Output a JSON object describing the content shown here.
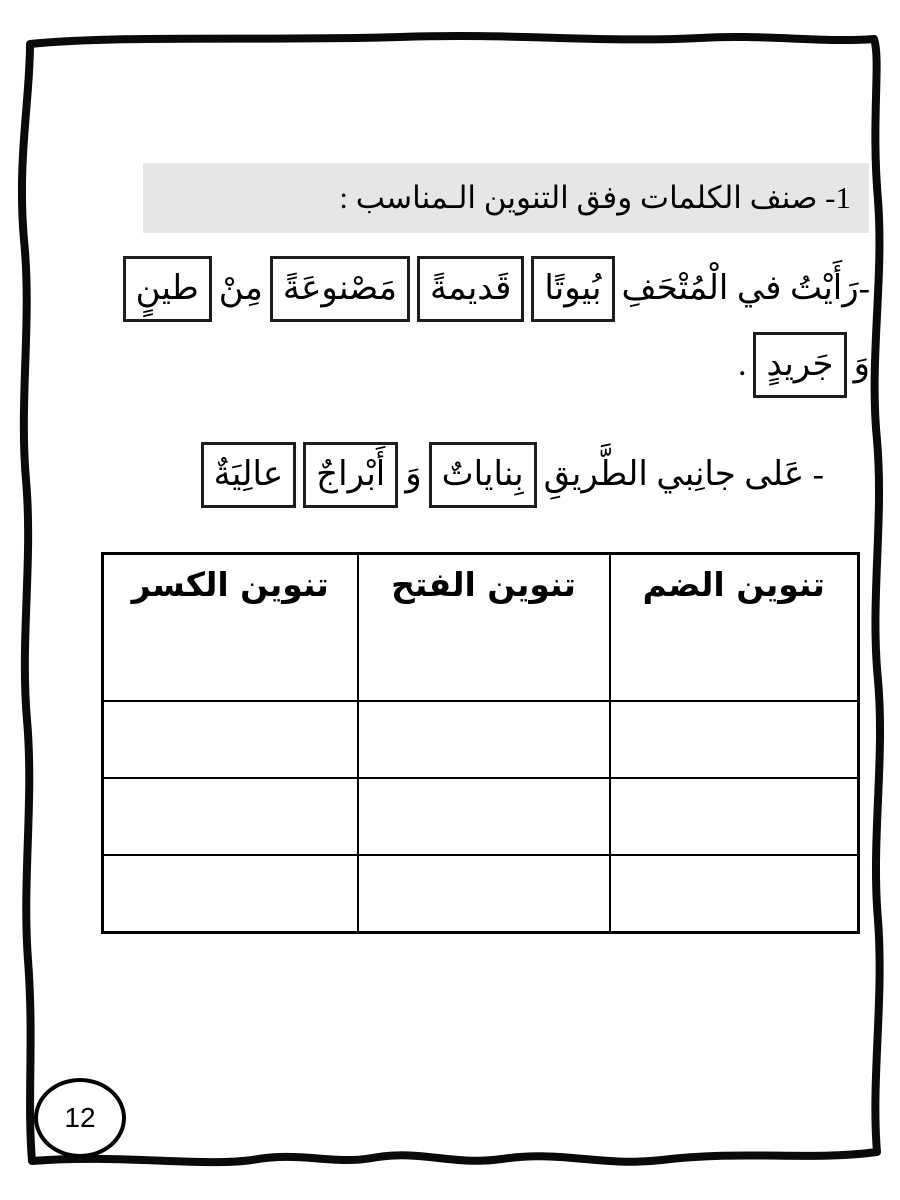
{
  "page": {
    "number": "12",
    "ink_color": "#000000",
    "title_bar_bg": "#e6e6e6"
  },
  "title": {
    "text": "1- صنف الكلمات وفق التنوين الـمناسب :"
  },
  "sentence1": {
    "lead": "-رَأَيْتُ في الْمُتْحَفِ",
    "boxed_word1": "بُيوتًا",
    "boxed_word2": "قَديمةً",
    "boxed_word3": "مَصْنوعَةً",
    "connector": "مِنْ",
    "boxed_word4": "طينٍ",
    "line2_lead": "وَ",
    "line2_boxed_word": "جَريدٍ",
    "line2_end": "."
  },
  "sentence2": {
    "lead": "- عَلى جانِبي الطَّريقِ",
    "boxed_word1": "بِناياتٌ",
    "connector": "وَ",
    "boxed_word2": "أَبْراجٌ",
    "boxed_word3": "عالِيَةٌ"
  },
  "table": {
    "headers": [
      "تنوين الضم",
      "تنوين الفتح",
      "تنوين الكسر"
    ],
    "empty_row_count": 3,
    "column_count": 3
  }
}
